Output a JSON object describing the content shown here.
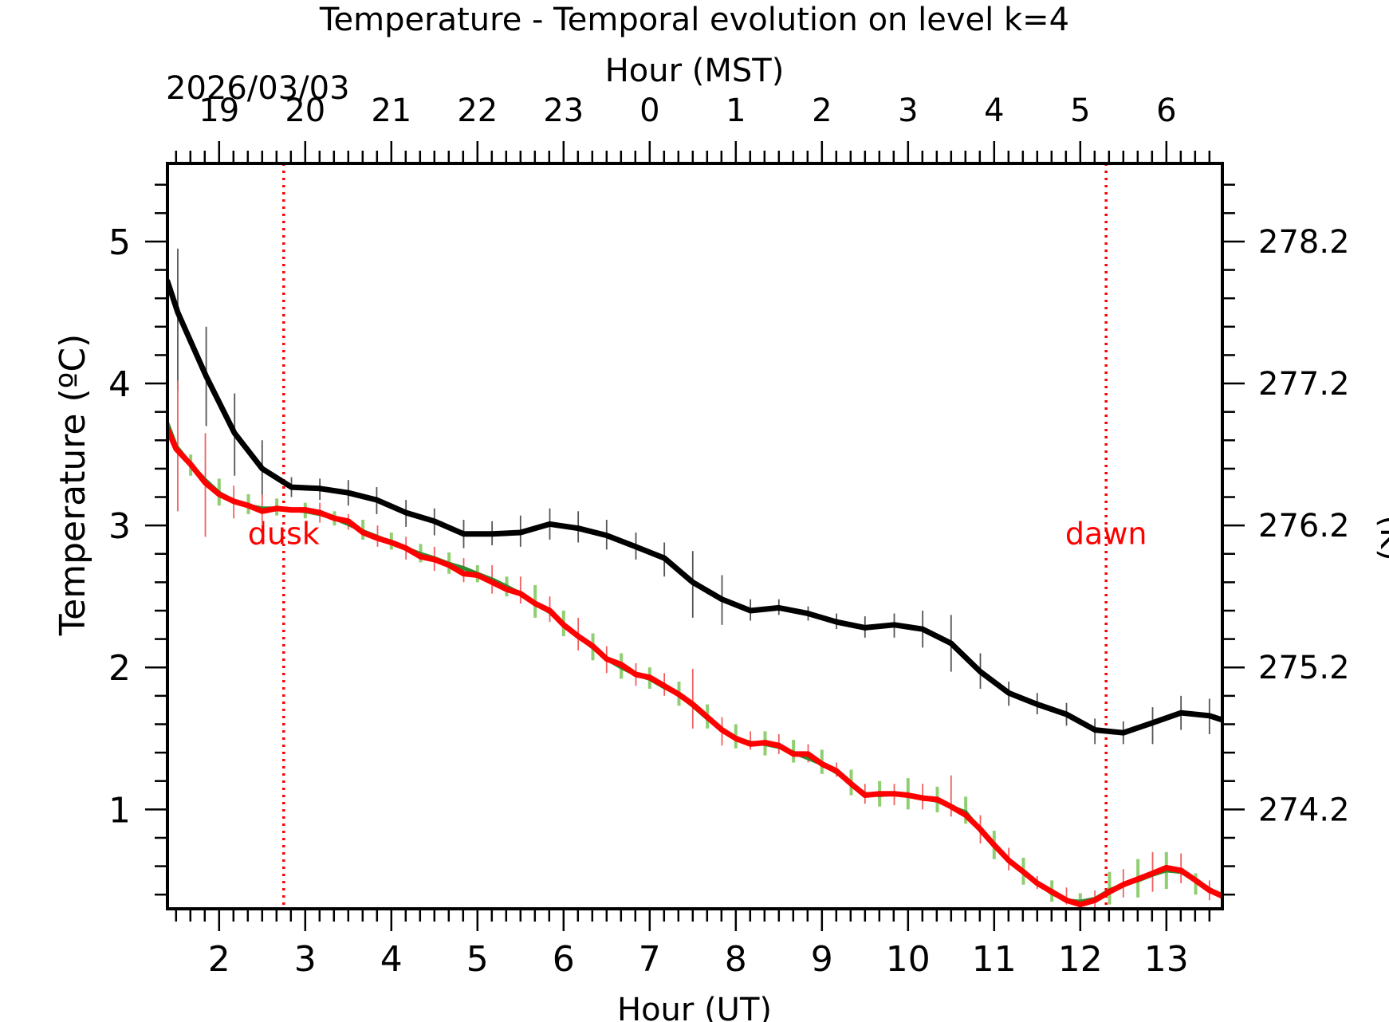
{
  "chart_data": {
    "type": "line",
    "title": "Temperature - Temporal evolution on level k=4",
    "date_label": "2026/03/03",
    "xlabel_bottom": "Hour (UT)",
    "xlabel_top": "Hour (MST)",
    "ylabel_left": "Temperature (ºC)",
    "ylabel_right": "(K)",
    "xlim": [
      1.4,
      13.65
    ],
    "ylim": [
      0.3,
      5.55
    ],
    "x_ticks": [
      2,
      3,
      4,
      5,
      6,
      7,
      8,
      9,
      10,
      11,
      12,
      13
    ],
    "x_tick_labels": [
      "2",
      "3",
      "4",
      "5",
      "6",
      "7",
      "8",
      "9",
      "10",
      "11",
      "12",
      "13"
    ],
    "top_ticks": [
      2,
      3,
      4,
      5,
      6,
      7,
      8,
      9,
      10,
      11,
      12,
      13
    ],
    "top_tick_labels": [
      "19",
      "20",
      "21",
      "22",
      "23",
      "0",
      "1",
      "2",
      "3",
      "4",
      "5",
      "6"
    ],
    "y_ticks": [
      1,
      2,
      3,
      4,
      5
    ],
    "y_tick_labels": [
      "1",
      "2",
      "3",
      "4",
      "5"
    ],
    "right_ticks": [
      1,
      2,
      3,
      4,
      5
    ],
    "right_tick_labels": [
      "274.2",
      "275.2",
      "276.2",
      "277.2",
      "278.2"
    ],
    "annotations": [
      {
        "text": "dusk",
        "x": 2.75,
        "label_y": 2.87,
        "color": "#ff0000"
      },
      {
        "text": "dawn",
        "x": 12.3,
        "label_y": 2.87,
        "color": "#ff0000"
      }
    ],
    "series": [
      {
        "name": "black",
        "color": "#000000",
        "errcolor": "#555555",
        "x": [
          1.4,
          1.52,
          1.85,
          2.18,
          2.5,
          2.84,
          3.17,
          3.5,
          3.83,
          4.17,
          4.5,
          4.84,
          5.17,
          5.5,
          5.84,
          6.17,
          6.5,
          6.84,
          7.17,
          7.5,
          7.84,
          8.17,
          8.5,
          8.84,
          9.17,
          9.5,
          9.84,
          10.17,
          10.5,
          10.84,
          11.17,
          11.5,
          11.84,
          12.17,
          12.5,
          12.84,
          13.17,
          13.5,
          13.65
        ],
        "values": [
          4.72,
          4.5,
          4.05,
          3.65,
          3.4,
          3.27,
          3.26,
          3.23,
          3.18,
          3.09,
          3.03,
          2.94,
          2.94,
          2.95,
          3.01,
          2.98,
          2.93,
          2.85,
          2.77,
          2.6,
          2.48,
          2.4,
          2.42,
          2.38,
          2.32,
          2.28,
          2.3,
          2.27,
          2.17,
          1.97,
          1.82,
          1.74,
          1.67,
          1.56,
          1.54,
          1.61,
          1.68,
          1.66,
          1.63
        ],
        "err_x": [
          1.52,
          1.85,
          2.18,
          2.5,
          2.84,
          3.17,
          3.5,
          3.83,
          4.17,
          4.5,
          4.84,
          5.17,
          5.5,
          5.84,
          6.17,
          6.5,
          6.84,
          7.17,
          7.5,
          7.84,
          8.17,
          8.5,
          8.84,
          9.17,
          9.5,
          9.84,
          10.17,
          10.5,
          10.84,
          11.17,
          11.5,
          11.84,
          12.17,
          12.5,
          12.84,
          13.17,
          13.5
        ],
        "err_lo": [
          3.95,
          3.7,
          3.35,
          3.2,
          3.2,
          3.18,
          3.14,
          3.08,
          2.99,
          2.93,
          2.84,
          2.86,
          2.85,
          2.9,
          2.88,
          2.83,
          2.76,
          2.64,
          2.35,
          2.3,
          2.33,
          2.37,
          2.33,
          2.27,
          2.21,
          2.21,
          2.14,
          1.97,
          1.85,
          1.73,
          1.67,
          1.59,
          1.46,
          1.46,
          1.46,
          1.56,
          1.53
        ],
        "err_hi": [
          4.95,
          4.4,
          3.93,
          3.6,
          3.34,
          3.33,
          3.32,
          3.27,
          3.18,
          3.12,
          3.04,
          3.03,
          3.07,
          3.12,
          3.1,
          3.04,
          2.95,
          2.88,
          2.82,
          2.65,
          2.48,
          2.48,
          2.43,
          2.38,
          2.36,
          2.38,
          2.4,
          2.37,
          2.1,
          1.9,
          1.82,
          1.75,
          1.64,
          1.62,
          1.72,
          1.8,
          1.78
        ]
      },
      {
        "name": "green",
        "color": "#2e8b2e",
        "errcolor": "#8fcf72",
        "x": [
          1.4,
          1.5,
          1.67,
          1.84,
          2.0,
          2.17,
          2.34,
          2.5,
          2.67,
          2.84,
          3.0,
          3.17,
          3.34,
          3.5,
          3.67,
          3.84,
          4.0,
          4.17,
          4.34,
          4.5,
          4.67,
          4.84,
          5.0,
          5.17,
          5.34,
          5.5,
          5.67,
          5.84,
          6.0,
          6.17,
          6.34,
          6.5,
          6.67,
          6.84,
          7.0,
          7.17,
          7.34,
          7.5,
          7.67,
          7.84,
          8.0,
          8.17,
          8.34,
          8.5,
          8.67,
          8.84,
          9.0,
          9.17,
          9.34,
          9.5,
          9.67,
          9.84,
          10.0,
          10.17,
          10.34,
          10.5,
          10.67,
          10.84,
          11.0,
          11.17,
          11.34,
          11.5,
          11.67,
          11.84,
          12.0,
          12.17,
          12.34,
          12.5,
          12.67,
          12.84,
          13.0,
          13.17,
          13.34,
          13.5,
          13.65
        ],
        "values": [
          3.72,
          3.56,
          3.43,
          3.32,
          3.23,
          3.17,
          3.14,
          3.12,
          3.12,
          3.11,
          3.1,
          3.08,
          3.05,
          3.01,
          2.96,
          2.92,
          2.88,
          2.84,
          2.8,
          2.77,
          2.73,
          2.7,
          2.66,
          2.62,
          2.57,
          2.52,
          2.45,
          2.39,
          2.3,
          2.22,
          2.14,
          2.06,
          2.0,
          1.95,
          1.92,
          1.86,
          1.81,
          1.73,
          1.64,
          1.56,
          1.5,
          1.47,
          1.46,
          1.44,
          1.4,
          1.36,
          1.32,
          1.26,
          1.18,
          1.11,
          1.1,
          1.11,
          1.1,
          1.08,
          1.06,
          1.02,
          0.98,
          0.85,
          0.74,
          0.64,
          0.56,
          0.48,
          0.41,
          0.36,
          0.35,
          0.37,
          0.43,
          0.47,
          0.5,
          0.54,
          0.57,
          0.56,
          0.5,
          0.44,
          0.39
        ],
        "err_x": [
          1.67,
          2.0,
          2.34,
          2.67,
          3.0,
          3.34,
          3.67,
          4.0,
          4.34,
          4.67,
          5.0,
          5.34,
          5.67,
          6.0,
          6.34,
          6.67,
          7.0,
          7.34,
          7.67,
          8.0,
          8.34,
          8.67,
          9.0,
          9.34,
          9.67,
          10.0,
          10.34,
          10.67,
          11.0,
          11.34,
          11.67,
          12.0,
          12.34,
          12.67,
          13.0,
          13.34
        ],
        "err_lo": [
          3.35,
          3.14,
          3.08,
          3.07,
          3.05,
          3.0,
          2.9,
          2.83,
          2.74,
          2.66,
          2.6,
          2.5,
          2.35,
          2.22,
          2.05,
          1.92,
          1.85,
          1.73,
          1.57,
          1.43,
          1.38,
          1.33,
          1.25,
          1.1,
          1.02,
          1.0,
          0.98,
          0.9,
          0.65,
          0.47,
          0.35,
          0.31,
          0.33,
          0.38,
          0.44,
          0.4
        ],
        "err_hi": [
          3.5,
          3.33,
          3.22,
          3.19,
          3.16,
          3.1,
          3.04,
          2.95,
          2.87,
          2.81,
          2.72,
          2.64,
          2.58,
          2.4,
          2.24,
          2.1,
          2.0,
          1.9,
          1.74,
          1.6,
          1.55,
          1.49,
          1.42,
          1.28,
          1.2,
          1.22,
          1.16,
          1.09,
          0.85,
          0.66,
          0.5,
          0.41,
          0.56,
          0.65,
          0.7,
          0.55
        ]
      },
      {
        "name": "red",
        "color": "#ff0000",
        "errcolor": "#f06060",
        "x": [
          1.4,
          1.5,
          1.67,
          1.84,
          2.0,
          2.17,
          2.34,
          2.5,
          2.67,
          2.84,
          3.0,
          3.17,
          3.34,
          3.5,
          3.67,
          3.84,
          4.0,
          4.17,
          4.34,
          4.5,
          4.67,
          4.84,
          5.0,
          5.17,
          5.34,
          5.5,
          5.67,
          5.84,
          6.0,
          6.17,
          6.34,
          6.5,
          6.67,
          6.84,
          7.0,
          7.17,
          7.34,
          7.5,
          7.67,
          7.84,
          8.0,
          8.17,
          8.34,
          8.5,
          8.67,
          8.84,
          9.0,
          9.17,
          9.34,
          9.5,
          9.67,
          9.84,
          10.0,
          10.17,
          10.34,
          10.5,
          10.67,
          10.84,
          11.0,
          11.17,
          11.34,
          11.5,
          11.67,
          11.84,
          12.0,
          12.17,
          12.34,
          12.5,
          12.67,
          12.84,
          13.0,
          13.17,
          13.34,
          13.5,
          13.65
        ],
        "values": [
          3.68,
          3.54,
          3.43,
          3.3,
          3.22,
          3.17,
          3.14,
          3.1,
          3.12,
          3.11,
          3.11,
          3.09,
          3.05,
          3.03,
          2.95,
          2.91,
          2.88,
          2.84,
          2.78,
          2.76,
          2.72,
          2.66,
          2.65,
          2.6,
          2.55,
          2.52,
          2.45,
          2.4,
          2.3,
          2.22,
          2.15,
          2.06,
          2.02,
          1.95,
          1.93,
          1.87,
          1.81,
          1.74,
          1.65,
          1.56,
          1.5,
          1.46,
          1.47,
          1.45,
          1.39,
          1.39,
          1.32,
          1.27,
          1.18,
          1.1,
          1.11,
          1.11,
          1.1,
          1.08,
          1.07,
          1.02,
          0.96,
          0.86,
          0.75,
          0.64,
          0.56,
          0.48,
          0.42,
          0.36,
          0.33,
          0.36,
          0.42,
          0.47,
          0.51,
          0.55,
          0.59,
          0.57,
          0.5,
          0.43,
          0.39
        ],
        "err_x": [
          1.52,
          1.84,
          2.17,
          2.5,
          3.17,
          3.5,
          3.84,
          4.17,
          4.5,
          4.84,
          5.17,
          5.5,
          5.84,
          6.17,
          6.5,
          6.84,
          7.17,
          7.5,
          7.84,
          8.17,
          8.5,
          8.84,
          9.17,
          9.5,
          9.84,
          10.17,
          10.5,
          10.84,
          11.17,
          11.5,
          11.84,
          12.17,
          12.5,
          12.84,
          13.17,
          13.5
        ],
        "err_lo": [
          3.1,
          2.92,
          3.05,
          3.0,
          3.02,
          2.97,
          2.85,
          2.76,
          2.68,
          2.6,
          2.52,
          2.45,
          2.32,
          2.12,
          1.96,
          1.87,
          1.8,
          1.57,
          1.45,
          1.42,
          1.39,
          1.33,
          1.23,
          1.04,
          1.03,
          1.0,
          0.95,
          0.76,
          0.57,
          0.44,
          0.33,
          0.3,
          0.38,
          0.42,
          0.48,
          0.36
        ],
        "err_hi": [
          4.02,
          3.65,
          3.28,
          3.22,
          3.16,
          3.08,
          3.0,
          2.92,
          2.85,
          2.77,
          2.72,
          2.64,
          2.5,
          2.35,
          2.15,
          2.03,
          1.96,
          1.99,
          1.65,
          1.55,
          1.53,
          1.46,
          1.33,
          1.18,
          1.18,
          1.18,
          1.24,
          0.96,
          0.73,
          0.53,
          0.45,
          0.43,
          0.58,
          0.7,
          0.69,
          0.5
        ]
      }
    ]
  }
}
